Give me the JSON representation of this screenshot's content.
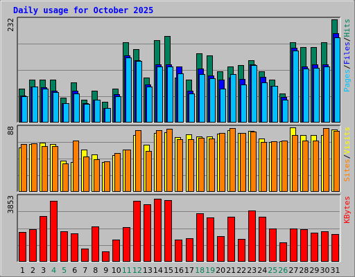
{
  "colors": {
    "background": "#c0c0c0",
    "hits": "#00805c",
    "files": "#0000ff",
    "pages": "#00c0ff",
    "visits": "#ffff00",
    "sites": "#ff8000",
    "kbytes": "#ff0000",
    "title": "#0000ff",
    "weekend_day": "#00805c",
    "weekday_day": "#000000"
  },
  "chart_data": {
    "type": "bar",
    "title": "Daily usage for October 2025",
    "categories": [
      "1",
      "2",
      "3",
      "4",
      "5",
      "6",
      "7",
      "8",
      "9",
      "10",
      "11",
      "12",
      "13",
      "14",
      "15",
      "16",
      "17",
      "18",
      "19",
      "20",
      "21",
      "22",
      "23",
      "24",
      "25",
      "26",
      "27",
      "28",
      "29",
      "30",
      "31"
    ],
    "weekend_days": [
      "4",
      "5",
      "11",
      "12",
      "18",
      "19",
      "25",
      "26"
    ],
    "grid": true,
    "panels": [
      {
        "name": "hits-files-pages",
        "max_label": "232",
        "ylim": [
          0,
          232
        ],
        "legend": [
          "Pages",
          "Files",
          "Hits"
        ],
        "series": [
          {
            "name": "Hits",
            "values": [
              75,
              95,
              95,
              95,
              55,
              90,
              50,
              70,
              45,
              75,
              180,
              165,
              100,
              185,
              195,
              100,
              95,
              155,
              150,
              115,
              125,
              128,
              140,
              115,
              95,
              65,
              180,
              170,
              170,
              180,
              232
            ]
          },
          {
            "name": "Files",
            "values": [
              60,
              80,
              78,
              70,
              42,
              70,
              42,
              50,
              32,
              62,
              150,
              140,
              85,
              130,
              130,
              125,
              70,
              120,
              105,
              95,
              100,
              97,
              130,
              102,
              82,
              57,
              168,
              125,
              130,
              130,
              200
            ]
          },
          {
            "name": "Pages",
            "values": [
              58,
              80,
              75,
              68,
              42,
              65,
              40,
              50,
              32,
              58,
              145,
              138,
              80,
              125,
              125,
              110,
              65,
              108,
              98,
              75,
              108,
              85,
              128,
              90,
              82,
              50,
              162,
              120,
              122,
              125,
              192
            ]
          }
        ]
      },
      {
        "name": "visits-sites",
        "max_label": "88",
        "ylim": [
          0,
          88
        ],
        "legend": [
          "Sites",
          "Visits"
        ],
        "series": [
          {
            "name": "Visits",
            "values": [
              60,
              65,
              67,
              65,
              42,
              40,
              57,
              51,
              40,
              50,
              57,
              77,
              64,
              80,
              81,
              75,
              78,
              76,
              76,
              79,
              84,
              80,
              83,
              73,
              68,
              69,
              88,
              77,
              77,
              77,
              85
            ]
          },
          {
            "name": "Sites",
            "values": [
              65,
              66,
              62,
              62,
              38,
              70,
              48,
              44,
              41,
              53,
              57,
              84,
              55,
              84,
              86,
              72,
              72,
              74,
              73,
              80,
              87,
              80,
              82,
              68,
              69,
              70,
              77,
              70,
              70,
              87,
              83
            ]
          }
        ]
      },
      {
        "name": "kbytes",
        "max_label": "3853",
        "ylim": [
          0,
          3853
        ],
        "legend": [
          "KBytes"
        ],
        "series": [
          {
            "name": "KBytes",
            "values": [
              1750,
              1900,
              2700,
              3600,
              1800,
              1650,
              740,
              2090,
              560,
              1280,
              2010,
              3600,
              3400,
              3730,
              3640,
              1300,
              1380,
              2850,
              2630,
              1480,
              2660,
              1320,
              3030,
              2650,
              1950,
              1120,
              1930,
              1900,
              1690,
              1780,
              1620
            ]
          }
        ]
      }
    ]
  }
}
